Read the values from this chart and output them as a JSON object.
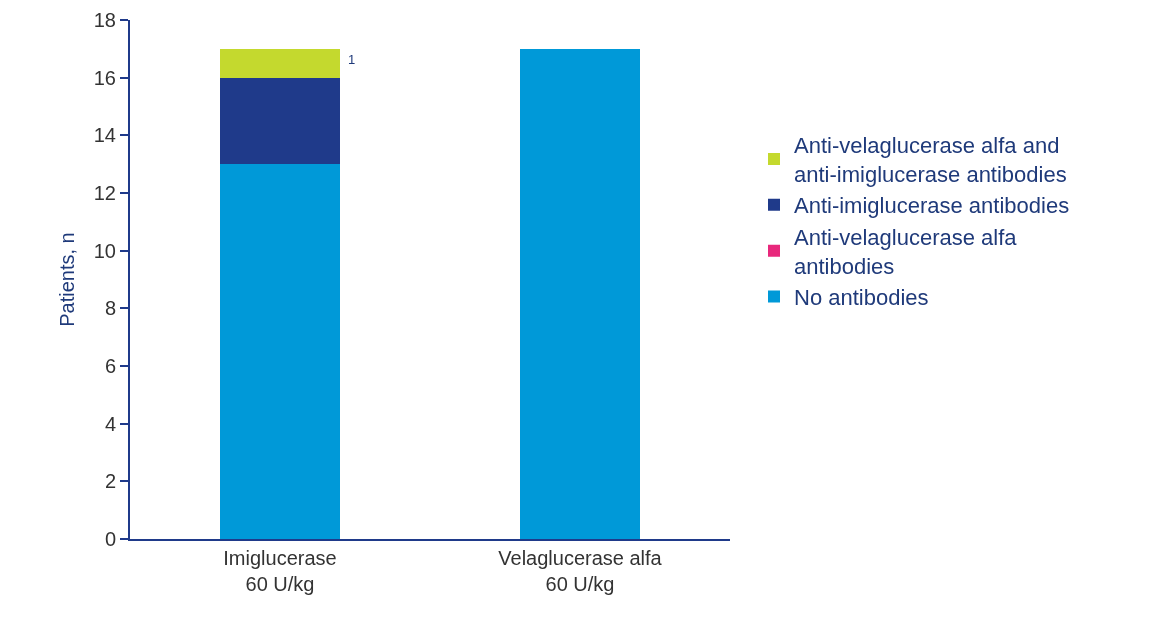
{
  "chart_data": {
    "type": "bar",
    "stacked": true,
    "ylabel": "Patients, n",
    "categories": [
      "Imiglucerase\n60 U/kg",
      "Velaglucerase alfa\n60 U/kg"
    ],
    "series": [
      {
        "name": "No antibodies",
        "color": "#0099d8",
        "values": [
          13,
          17
        ]
      },
      {
        "name": "Anti-velaglucerase alfa\nantibodies",
        "color": "#e8287c",
        "values": [
          0,
          0
        ]
      },
      {
        "name": "Anti-imiglucerase antibodies",
        "color": "#1f3a8a",
        "values": [
          3,
          0
        ]
      },
      {
        "name": "Anti-velaglucerase alfa and\nanti-imiglucerase antibodies",
        "color": "#c4d92e",
        "values": [
          1,
          0
        ],
        "value_labels": [
          "1",
          null
        ]
      }
    ],
    "ylim": [
      0,
      18
    ],
    "yticks": [
      0,
      2,
      4,
      6,
      8,
      10,
      12,
      14,
      16,
      18
    ],
    "grid": false,
    "legend": "right"
  }
}
